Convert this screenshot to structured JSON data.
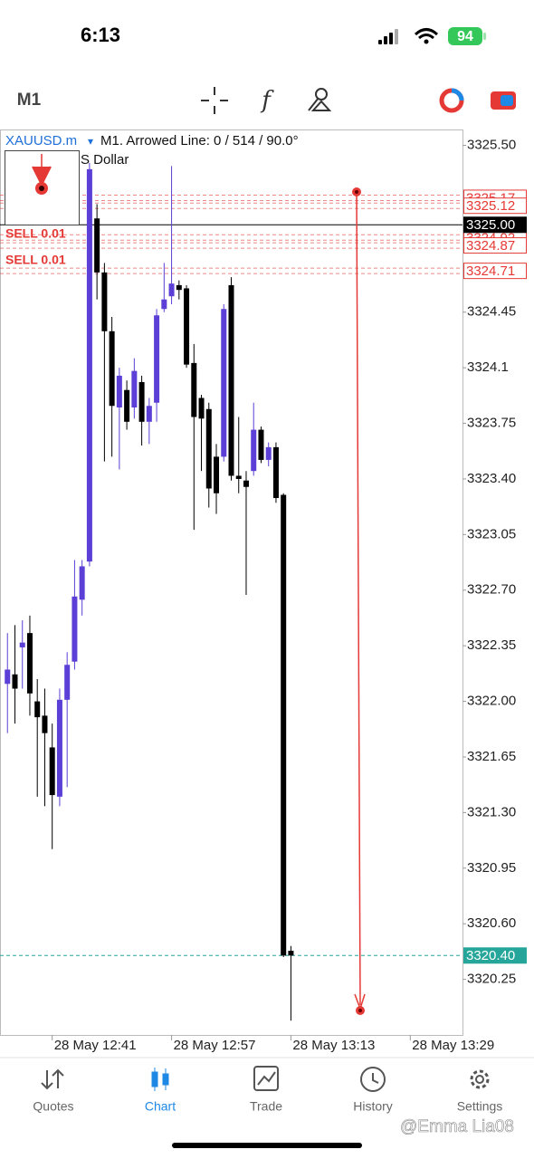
{
  "status_bar": {
    "time": "6:13",
    "battery": "94"
  },
  "toolbar": {
    "timeframe": "M1"
  },
  "chart_header": {
    "symbol": "XAUUSD.m",
    "symbol_arrow": "▾",
    "object_info": "M1. Arrowed Line: 0 / 514 / 90.0°",
    "description": "S Dollar"
  },
  "chart_data": {
    "type": "candlestick",
    "up_color": "#5b3fd6",
    "down_color": "#000000",
    "x": [
      "28 May 12:35",
      "28 May 12:36",
      "28 May 12:37",
      "28 May 12:38",
      "28 May 12:39",
      "28 May 12:40",
      "28 May 12:41",
      "28 May 12:42",
      "28 May 12:43",
      "28 May 12:44",
      "28 May 12:45",
      "28 May 12:46",
      "28 May 12:47",
      "28 May 12:48",
      "28 May 12:49",
      "28 May 12:50",
      "28 May 12:51",
      "28 May 12:52",
      "28 May 12:53",
      "28 May 12:54",
      "28 May 12:55",
      "28 May 12:56",
      "28 May 12:57",
      "28 May 12:58",
      "28 May 12:59",
      "28 May 13:00",
      "28 May 13:01",
      "28 May 13:02",
      "28 May 13:03",
      "28 May 13:04",
      "28 May 13:05",
      "28 May 13:06",
      "28 May 13:07",
      "28 May 13:08",
      "28 May 13:09",
      "28 May 13:10",
      "28 May 13:11",
      "28 May 13:12",
      "28 May 13:13"
    ],
    "open": [
      3322.11,
      3322.17,
      3322.34,
      3322.43,
      3322.0,
      3321.91,
      3321.71,
      3321.4,
      3322.01,
      3322.25,
      3322.64,
      3322.88,
      3325.04,
      3324.7,
      3324.33,
      3323.85,
      3323.96,
      3323.85,
      3324.01,
      3323.76,
      3323.88,
      3324.47,
      3324.55,
      3324.62,
      3324.6,
      3324.13,
      3323.91,
      3323.84,
      3323.54,
      3323.54,
      3324.62,
      3323.42,
      3323.39,
      3323.45,
      3323.71,
      3323.52,
      3323.6,
      3323.3,
      3320.43
    ],
    "high": [
      3322.43,
      3322.48,
      3322.51,
      3322.54,
      3322.14,
      3322.08,
      3321.86,
      3322.08,
      3322.31,
      3322.89,
      3322.89,
      3325.39,
      3325.13,
      3324.76,
      3324.42,
      3324.1,
      3324.02,
      3324.16,
      3324.05,
      3323.91,
      3324.47,
      3324.76,
      3325.37,
      3324.65,
      3324.62,
      3324.25,
      3323.93,
      3323.88,
      3323.62,
      3324.5,
      3324.67,
      3323.79,
      3323.45,
      3323.88,
      3323.73,
      3323.63,
      3323.63,
      3323.31,
      3320.46
    ],
    "low": [
      3321.8,
      3321.86,
      3322.08,
      3321.91,
      3321.4,
      3321.34,
      3321.07,
      3321.34,
      3321.46,
      3322.2,
      3322.54,
      3322.85,
      3324.53,
      3323.51,
      3323.54,
      3323.46,
      3323.71,
      3323.78,
      3323.61,
      3323.62,
      3323.76,
      3324.45,
      3324.5,
      3324.53,
      3324.1,
      3323.08,
      3323.45,
      3323.22,
      3323.18,
      3323.51,
      3323.39,
      3323.31,
      3322.67,
      3323.42,
      3323.5,
      3323.48,
      3323.25,
      3320.39,
      3319.99
    ],
    "close": [
      3322.2,
      3322.08,
      3322.37,
      3322.05,
      3321.9,
      3321.8,
      3321.41,
      3322.01,
      3322.23,
      3322.66,
      3322.85,
      3325.35,
      3324.7,
      3324.33,
      3323.86,
      3324.05,
      3323.76,
      3324.08,
      3323.76,
      3323.86,
      3324.43,
      3324.53,
      3324.63,
      3324.59,
      3324.12,
      3323.79,
      3323.78,
      3323.34,
      3323.31,
      3324.47,
      3323.42,
      3323.4,
      3323.35,
      3323.71,
      3323.52,
      3323.6,
      3323.28,
      3320.4,
      3320.4
    ],
    "xlim": [
      "28 May 12:34",
      "28 May 13:36"
    ],
    "xticks": [
      "28 May 12:41",
      "28 May 12:57",
      "28 May 13:13",
      "28 May 13:29"
    ],
    "ylim": [
      3319.9,
      3325.6
    ],
    "yticks": [
      {
        "value": 3325.5,
        "label": "3325.50"
      },
      3324.45,
      3324.1,
      3323.75,
      {
        "value": 3323.4,
        "label": "3323.40"
      },
      3323.05,
      {
        "value": 3322.7,
        "label": "3322.70"
      },
      3322.35,
      {
        "value": 3322,
        "label": "3322.00"
      },
      3321.65,
      {
        "value": 3321.3,
        "label": "3321.30"
      },
      3320.95,
      {
        "value": 3320.6,
        "label": "3320.60"
      },
      3320.25
    ],
    "price_lines": [
      {
        "value": 3325.17,
        "color": "#e53935",
        "dashed": true
      },
      {
        "value": 3325.12,
        "color": "#e53935",
        "dashed": true
      },
      {
        "value": 3324.92,
        "color": "#e53935",
        "dashed": true
      },
      {
        "value": 3324.87,
        "color": "#e53935",
        "dashed": true
      },
      {
        "value": 3324.71,
        "color": "#e53935",
        "dashed": true
      },
      {
        "value": 3325,
        "label": "3325.00",
        "color": "#000000",
        "dashed": false
      },
      {
        "value": 3320.4,
        "label": "3320.40",
        "color": "#26a69a",
        "dashed": true
      }
    ],
    "order_labels": [
      "SELL 0.01",
      "SELL 0.01"
    ]
  },
  "tab_bar": [
    {
      "label": "Quotes"
    },
    {
      "label": "Chart"
    },
    {
      "label": "Trade"
    },
    {
      "label": "History"
    },
    {
      "label": "Settings"
    }
  ],
  "watermark": "@Emma Lia08"
}
